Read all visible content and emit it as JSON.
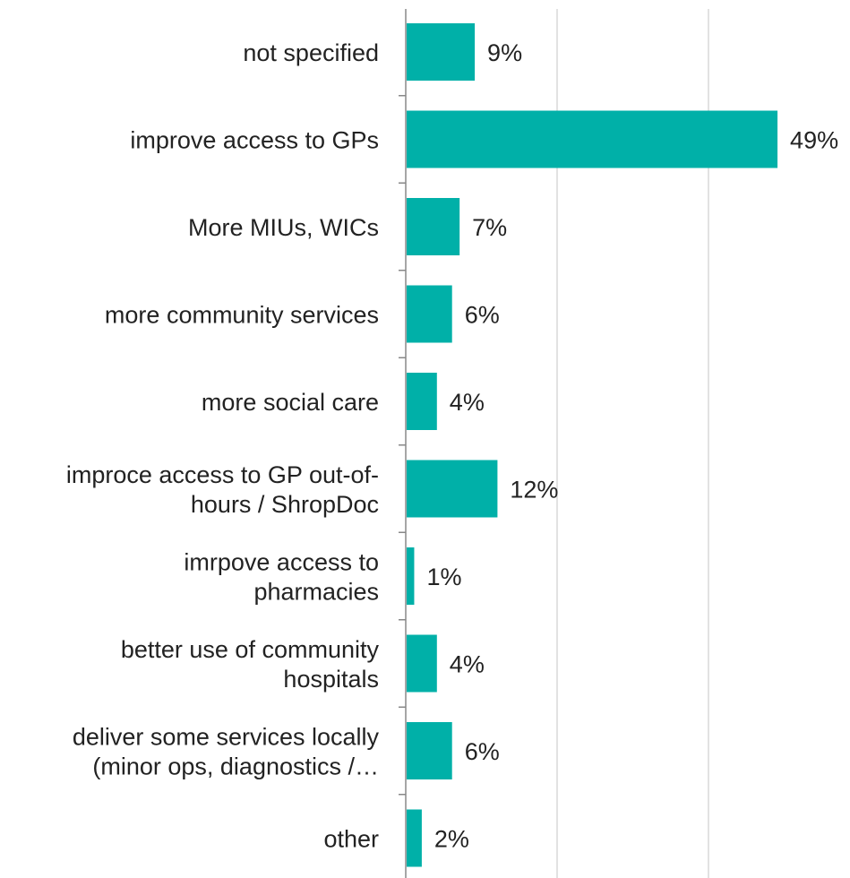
{
  "chart_data": {
    "type": "bar",
    "orientation": "horizontal",
    "categories": [
      [
        "not specified"
      ],
      [
        "improve access to GPs"
      ],
      [
        "More MIUs, WICs"
      ],
      [
        "more community services"
      ],
      [
        "more social care"
      ],
      [
        "improce access to GP out-of-",
        "hours / ShropDoc"
      ],
      [
        "imrpove access to",
        "pharmacies"
      ],
      [
        "better use of community",
        "hospitals"
      ],
      [
        "deliver some services locally",
        "(minor ops, diagnostics /…"
      ],
      [
        "other"
      ]
    ],
    "values": [
      9,
      49,
      7,
      6,
      4,
      12,
      1,
      4,
      6,
      2
    ],
    "value_labels": [
      "9%",
      "49%",
      "7%",
      "6%",
      "4%",
      "12%",
      "1%",
      "4%",
      "6%",
      "2%"
    ],
    "value_unit": "%",
    "xlim": [
      0,
      60
    ],
    "grid": true,
    "title": "",
    "xlabel": "",
    "ylabel": "",
    "colors": {
      "bar": "#00B0A8",
      "grid": "#D9D9D9",
      "axis": "#888888",
      "text": "#222222"
    }
  }
}
